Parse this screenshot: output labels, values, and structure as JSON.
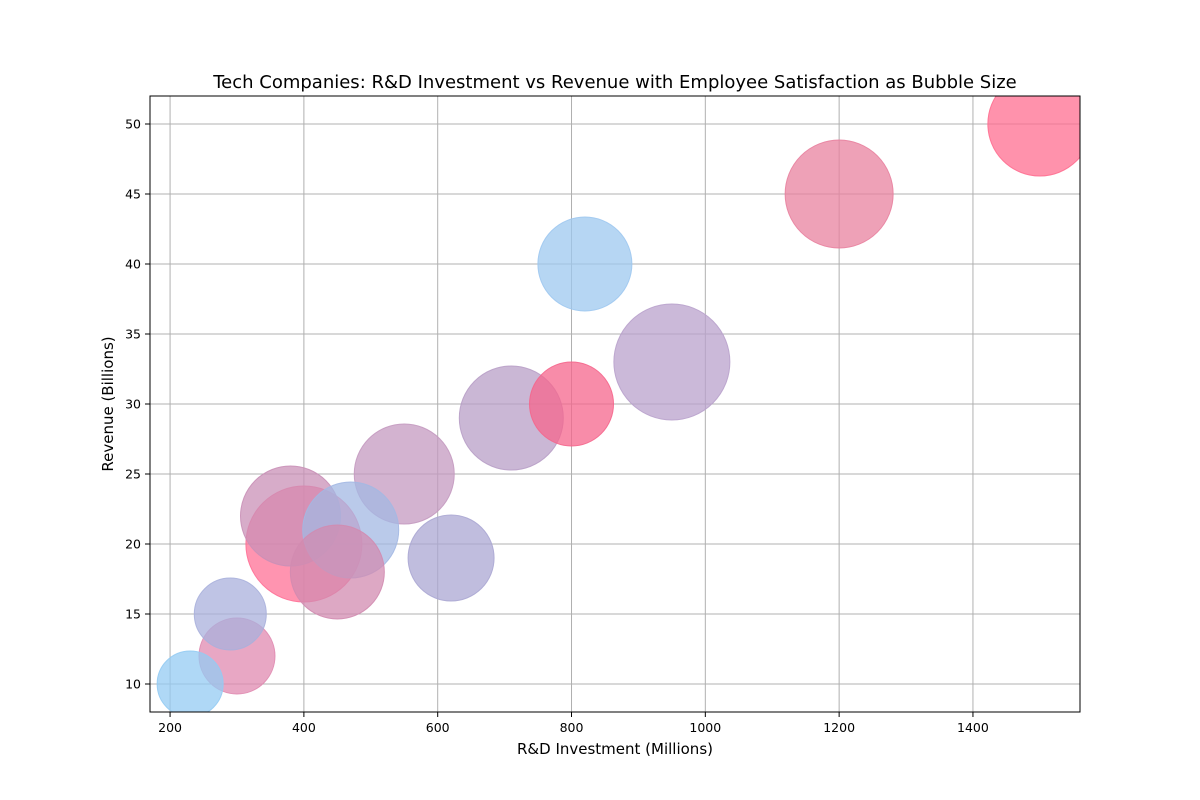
{
  "chart_data": {
    "type": "scatter",
    "title": "Tech Companies: R&D Investment vs Revenue with Employee Satisfaction as Bubble Size",
    "xlabel": "R&D Investment (Millions)",
    "ylabel": "Revenue (Billions)",
    "xlim": [
      170,
      1560
    ],
    "ylim": [
      8,
      52
    ],
    "x_ticks": [
      200,
      400,
      600,
      800,
      1000,
      1200,
      1400
    ],
    "y_ticks": [
      10,
      15,
      20,
      25,
      30,
      35,
      40,
      45,
      50
    ],
    "grid": true,
    "points": [
      {
        "x": 400,
        "y": 20,
        "size": 58,
        "color": "#ff7096"
      },
      {
        "x": 950,
        "y": 33,
        "size": 58,
        "color": "#b9a2cc"
      },
      {
        "x": 1200,
        "y": 45,
        "size": 54,
        "color": "#e8819f"
      },
      {
        "x": 1500,
        "y": 50,
        "size": 52,
        "color": "#ff6e90"
      },
      {
        "x": 710,
        "y": 29,
        "size": 52,
        "color": "#b89fc7"
      },
      {
        "x": 550,
        "y": 25,
        "size": 50,
        "color": "#c49ac0"
      },
      {
        "x": 380,
        "y": 22,
        "size": 50,
        "color": "#c990b7"
      },
      {
        "x": 470,
        "y": 21,
        "size": 48,
        "color": "#a3b8e3"
      },
      {
        "x": 450,
        "y": 18,
        "size": 47,
        "color": "#d28bb0"
      },
      {
        "x": 820,
        "y": 40,
        "size": 47,
        "color": "#9ec8ef"
      },
      {
        "x": 620,
        "y": 19,
        "size": 43,
        "color": "#aba7d3"
      },
      {
        "x": 800,
        "y": 30,
        "size": 42,
        "color": "#f5668c"
      },
      {
        "x": 300,
        "y": 12,
        "size": 38,
        "color": "#e08ab0"
      },
      {
        "x": 290,
        "y": 15,
        "size": 36,
        "color": "#a9b0dc"
      },
      {
        "x": 230,
        "y": 10,
        "size": 33,
        "color": "#94cbf3"
      }
    ]
  }
}
